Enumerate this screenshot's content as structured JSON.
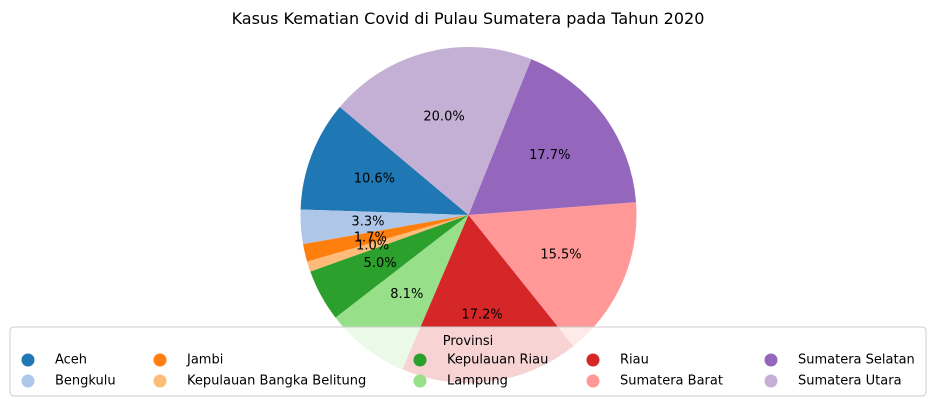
{
  "chart_data": {
    "type": "pie",
    "title": "Kasus Kematian Covid di Pulau Sumatera pada Tahun 2020",
    "legend_title": "Provinsi",
    "legend_placement": "bottom",
    "startangle_deg": 140,
    "direction": "counterclockwise",
    "slices": [
      {
        "label": "Aceh",
        "value": 10.6,
        "display": "10.6%",
        "color": "#1f77b4"
      },
      {
        "label": "Bengkulu",
        "value": 3.3,
        "display": "3.3%",
        "color": "#aec7e8"
      },
      {
        "label": "Jambi",
        "value": 1.7,
        "display": "1.7%",
        "color": "#ff7f0e"
      },
      {
        "label": "Kepulauan Bangka Belitung",
        "value": 1.0,
        "display": "1.0%",
        "color": "#ffbb78"
      },
      {
        "label": "Kepulauan Riau",
        "value": 5.0,
        "display": "5.0%",
        "color": "#2ca02c"
      },
      {
        "label": "Lampung",
        "value": 8.1,
        "display": "8.1%",
        "color": "#98df8a"
      },
      {
        "label": "Riau",
        "value": 17.2,
        "display": "17.2%",
        "color": "#d62728"
      },
      {
        "label": "Sumatera Barat",
        "value": 15.5,
        "display": "15.5%",
        "color": "#ff9896"
      },
      {
        "label": "Sumatera Selatan",
        "value": 17.7,
        "display": "17.7%",
        "color": "#9467bd"
      },
      {
        "label": "Sumatera Utara",
        "value": 20.0,
        "display": "20.0%",
        "color": "#c5b0d5"
      }
    ]
  }
}
